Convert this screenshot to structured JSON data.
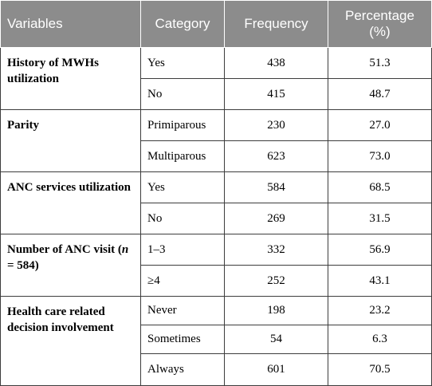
{
  "headers": {
    "variables": "Variables",
    "category": "Category",
    "frequency": "Frequency",
    "percentage": "Percentage (%)"
  },
  "groups": [
    {
      "variable": "History of MWHs utilization",
      "rows": [
        {
          "category": "Yes",
          "frequency": "438",
          "percentage": "51.3"
        },
        {
          "category": "No",
          "frequency": "415",
          "percentage": "48.7"
        }
      ]
    },
    {
      "variable": "Parity",
      "rows": [
        {
          "category": "Primiparous",
          "frequency": "230",
          "percentage": "27.0"
        },
        {
          "category": "Multiparous",
          "frequency": "623",
          "percentage": "73.0"
        }
      ]
    },
    {
      "variable": "ANC services utilization",
      "rows": [
        {
          "category": "Yes",
          "frequency": "584",
          "percentage": "68.5"
        },
        {
          "category": "No",
          "frequency": "269",
          "percentage": "31.5"
        }
      ]
    },
    {
      "variable_prefix": "Number of ANC visit (",
      "variable_n": "n",
      "variable_suffix": " = 584)",
      "rows": [
        {
          "category": "1–3",
          "frequency": "332",
          "percentage": "56.9"
        },
        {
          "category": "≥4",
          "frequency": "252",
          "percentage": "43.1"
        }
      ]
    },
    {
      "variable": "Health care related decision involvement",
      "rows": [
        {
          "category": "Never",
          "frequency": "198",
          "percentage": "23.2"
        },
        {
          "category": "Sometimes",
          "frequency": "54",
          "percentage": "6.3"
        },
        {
          "category": "Always",
          "frequency": "601",
          "percentage": "70.5"
        }
      ]
    }
  ]
}
